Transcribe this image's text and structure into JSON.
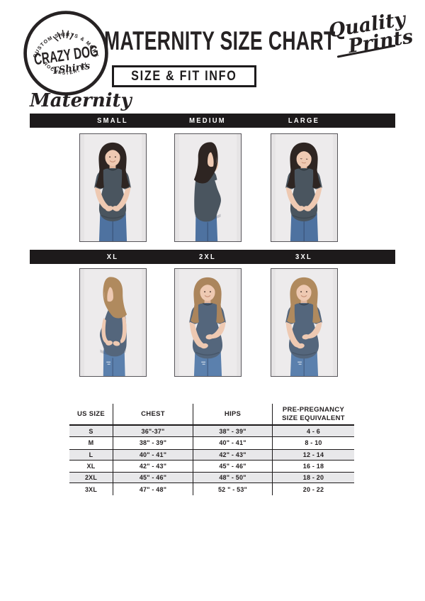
{
  "header": {
    "logo": {
      "arc_top": "CUSTOM SHIRTS & MORE",
      "name_line": "CRAZY DOG",
      "script_line": "TShirts",
      "arc_bottom": "ROCHESTER, NY"
    },
    "title": "MATERNITY SIZE CHART",
    "badge_script": [
      "Quality",
      "Prints"
    ],
    "subtitle_box": "SIZE & FIT INFO"
  },
  "section_label": "Maternity",
  "size_sections": [
    {
      "sizes": [
        "SMALL",
        "MEDIUM",
        "LARGE"
      ]
    },
    {
      "sizes": [
        "XL",
        "2XL",
        "3XL"
      ]
    }
  ],
  "photos": [
    {
      "size": "SMALL",
      "alt": "model facing front, hands clasped under belly",
      "pose": "front-clasp",
      "hair": "#2e2522",
      "shirt": "#4a555f",
      "jeans": "#4e72a0"
    },
    {
      "size": "MEDIUM",
      "alt": "model in right profile, hand behind neck",
      "pose": "profile-right",
      "hair": "#2e2522",
      "shirt": "#4a555f",
      "jeans": "#4e72a0"
    },
    {
      "size": "LARGE",
      "alt": "model facing front, looking down at belly",
      "pose": "front-down",
      "hair": "#2e2522",
      "shirt": "#4a555f",
      "jeans": "#4e72a0"
    },
    {
      "size": "XL",
      "alt": "model in left profile, hands under belly",
      "pose": "profile-left",
      "hair": "#b08a5e",
      "shirt": "#54667c",
      "jeans": "#5b80ad"
    },
    {
      "size": "2XL",
      "alt": "model facing front, one hand on top of belly",
      "pose": "front-handtop",
      "hair": "#ab855c",
      "shirt": "#54667c",
      "jeans": "#5b80ad"
    },
    {
      "size": "3XL",
      "alt": "model facing front, one hand on top of belly",
      "pose": "front-handtop",
      "hair": "#b08a5e",
      "shirt": "#54667c",
      "jeans": "#5b80ad"
    }
  ],
  "table": {
    "headers": [
      "US SIZE",
      "CHEST",
      "HIPS",
      "PRE-PREGNANCY SIZE EQUIVALENT"
    ],
    "rows": [
      [
        "S",
        "36\"-37\"",
        "38\" - 39\"",
        "4 - 6"
      ],
      [
        "M",
        "38\" - 39\"",
        "40\" - 41\"",
        "8 - 10"
      ],
      [
        "L",
        "40\" - 41\"",
        "42\" - 43\"",
        "12 - 14"
      ],
      [
        "XL",
        "42\" - 43\"",
        "45\" - 46\"",
        "16 - 18"
      ],
      [
        "2XL",
        "45\" - 46\"",
        "48\" - 50\"",
        "18 - 20"
      ],
      [
        "3XL",
        "47\" - 48\"",
        "52 \" - 53\"",
        "20 - 22"
      ]
    ]
  },
  "colors": {
    "ink": "#231f20",
    "bar_background": "#1d1a1b",
    "table_stripe": "#e8e8ea",
    "photo_background": "#edebec",
    "skin": "#eec9b2"
  }
}
